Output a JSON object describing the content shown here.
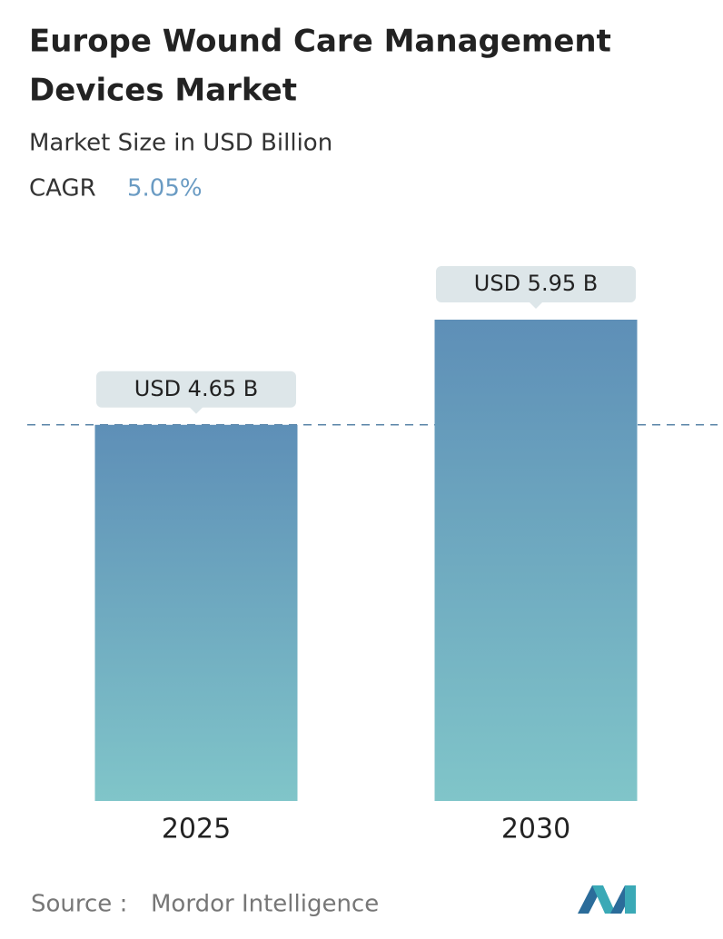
{
  "chart_data": {
    "type": "bar",
    "title_lines": [
      "Europe Wound Care Management",
      "Devices Market"
    ],
    "subtitle": "Market Size in USD Billion",
    "cagr_label": "CAGR",
    "cagr_value": "5.05%",
    "categories": [
      "2025",
      "2030"
    ],
    "values": [
      4.65,
      5.95
    ],
    "value_labels": [
      "USD 4.65 B",
      "USD 5.95 B"
    ],
    "color_top": "#5e8fb7",
    "color_bottom": "#80c5c9",
    "source_label": "Source :",
    "source": "Mordor Intelligence"
  }
}
